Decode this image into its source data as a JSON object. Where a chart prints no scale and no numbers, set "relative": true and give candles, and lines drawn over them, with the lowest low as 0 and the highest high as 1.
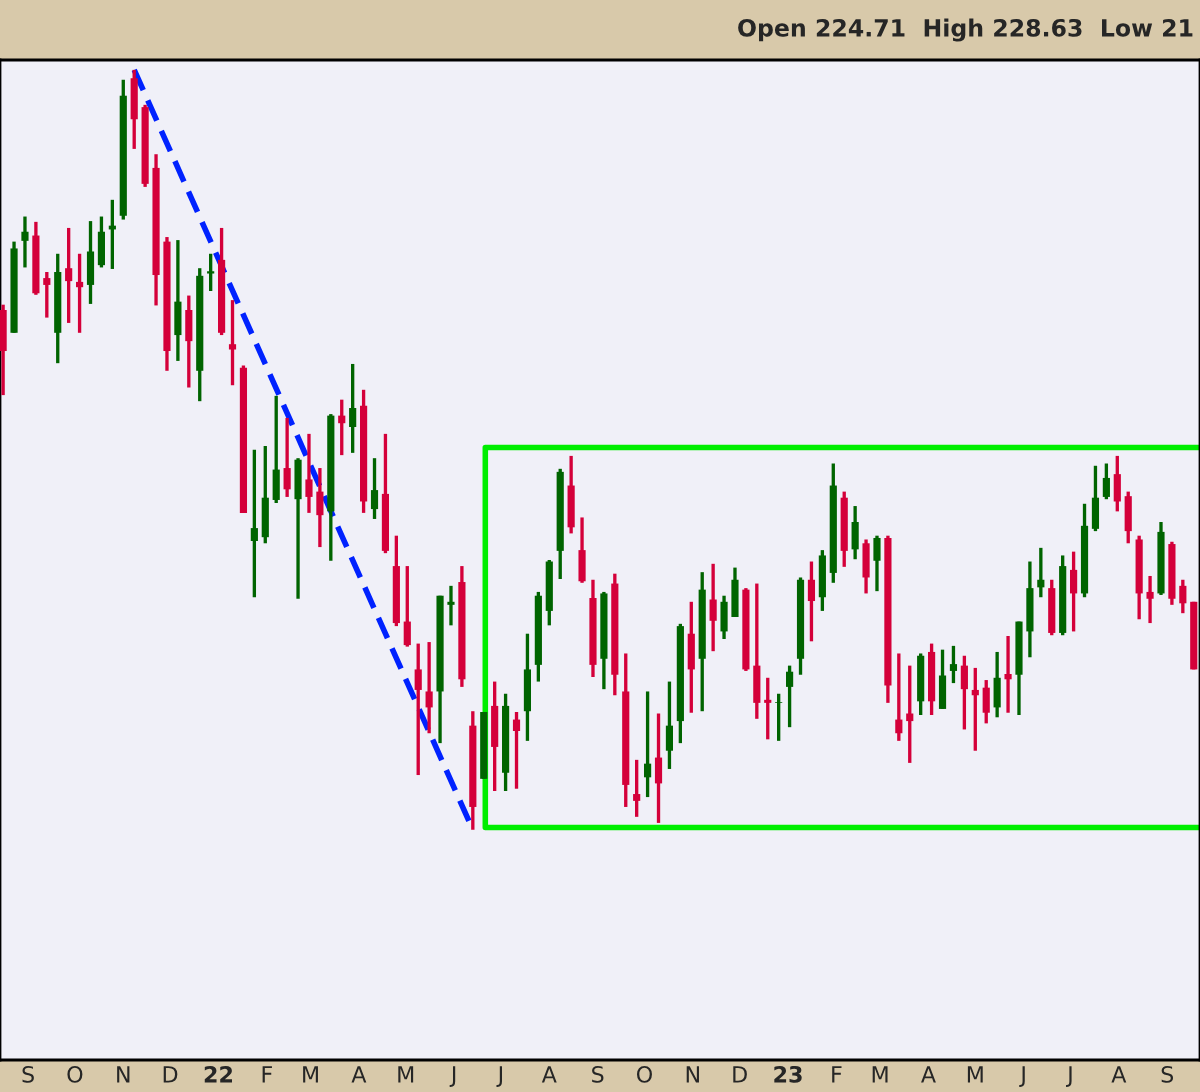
{
  "chart_data": {
    "type": "candlestick",
    "relative": true,
    "annotations": [
      "Open 224.71  High 228.63  Low 21"
    ],
    "x": [
      "2021-08-16",
      "2021-08-23",
      "2021-08-30",
      "2021-09-06",
      "2021-09-13",
      "2021-09-20",
      "2021-09-27",
      "2021-10-04",
      "2021-10-11",
      "2021-10-18",
      "2021-10-25",
      "2021-11-01",
      "2021-11-08",
      "2021-11-15",
      "2021-11-22",
      "2021-11-29",
      "2021-12-06",
      "2021-12-13",
      "2021-12-20",
      "2021-12-27",
      "2022-01-03",
      "2022-01-10",
      "2022-01-17",
      "2022-01-24",
      "2022-01-31",
      "2022-02-07",
      "2022-02-14",
      "2022-02-21",
      "2022-02-28",
      "2022-03-07",
      "2022-03-14",
      "2022-03-21",
      "2022-03-28",
      "2022-04-04",
      "2022-04-11",
      "2022-04-18",
      "2022-04-25",
      "2022-05-02",
      "2022-05-09",
      "2022-05-16",
      "2022-05-23",
      "2022-05-30",
      "2022-06-06",
      "2022-06-13",
      "2022-06-20",
      "2022-06-27",
      "2022-07-04",
      "2022-07-11",
      "2022-07-18",
      "2022-07-25",
      "2022-08-01",
      "2022-08-08",
      "2022-08-15",
      "2022-08-22",
      "2022-08-29",
      "2022-09-05",
      "2022-09-12",
      "2022-09-19",
      "2022-09-26",
      "2022-10-03",
      "2022-10-10",
      "2022-10-17",
      "2022-10-24",
      "2022-10-31",
      "2022-11-07",
      "2022-11-14",
      "2022-11-21",
      "2022-11-28",
      "2022-12-05",
      "2022-12-12",
      "2022-12-19",
      "2022-12-26",
      "2023-01-02",
      "2023-01-09",
      "2023-01-16",
      "2023-01-23",
      "2023-01-30",
      "2023-02-06",
      "2023-02-13",
      "2023-02-20",
      "2023-02-27",
      "2023-03-06",
      "2023-03-13",
      "2023-03-20",
      "2023-03-27",
      "2023-04-03",
      "2023-04-10",
      "2023-04-17",
      "2023-04-24",
      "2023-05-01",
      "2023-05-08",
      "2023-05-15",
      "2023-05-22",
      "2023-05-29",
      "2023-06-05",
      "2023-06-12",
      "2023-06-19",
      "2023-06-26",
      "2023-07-03",
      "2023-07-10",
      "2023-07-17",
      "2023-07-24",
      "2023-07-31",
      "2023-08-07",
      "2023-08-14",
      "2023-08-21",
      "2023-08-28",
      "2023-09-04",
      "2023-09-11",
      "2023-09-18"
    ],
    "ohlc": [
      [
        0.684,
        0.691,
        0.572,
        0.63
      ],
      [
        0.654,
        0.774,
        0.654,
        0.765
      ],
      [
        0.775,
        0.807,
        0.74,
        0.787
      ],
      [
        0.782,
        0.8,
        0.704,
        0.706
      ],
      [
        0.726,
        0.734,
        0.674,
        0.717
      ],
      [
        0.654,
        0.758,
        0.614,
        0.734
      ],
      [
        0.739,
        0.792,
        0.667,
        0.722
      ],
      [
        0.721,
        0.758,
        0.654,
        0.714
      ],
      [
        0.717,
        0.801,
        0.692,
        0.761
      ],
      [
        0.743,
        0.807,
        0.74,
        0.787
      ],
      [
        0.79,
        0.829,
        0.738,
        0.795
      ],
      [
        0.808,
        0.987,
        0.803,
        0.966
      ],
      [
        0.989,
        1.0,
        0.896,
        0.935
      ],
      [
        0.951,
        0.954,
        0.846,
        0.85
      ],
      [
        0.871,
        0.889,
        0.69,
        0.73
      ],
      [
        0.774,
        0.78,
        0.604,
        0.63
      ],
      [
        0.651,
        0.776,
        0.617,
        0.695
      ],
      [
        0.684,
        0.703,
        0.582,
        0.643
      ],
      [
        0.604,
        0.739,
        0.564,
        0.729
      ],
      [
        0.732,
        0.758,
        0.709,
        0.735
      ],
      [
        0.75,
        0.792,
        0.651,
        0.654
      ],
      [
        0.639,
        0.697,
        0.585,
        0.632
      ],
      [
        0.608,
        0.611,
        0.417,
        0.417
      ],
      [
        0.38,
        0.5,
        0.306,
        0.397
      ],
      [
        0.385,
        0.505,
        0.377,
        0.437
      ],
      [
        0.434,
        0.571,
        0.43,
        0.474
      ],
      [
        0.476,
        0.542,
        0.438,
        0.448
      ],
      [
        0.435,
        0.489,
        0.304,
        0.487
      ],
      [
        0.461,
        0.521,
        0.417,
        0.438
      ],
      [
        0.445,
        0.476,
        0.372,
        0.414
      ],
      [
        0.419,
        0.547,
        0.354,
        0.545
      ],
      [
        0.545,
        0.566,
        0.493,
        0.535
      ],
      [
        0.53,
        0.613,
        0.496,
        0.555
      ],
      [
        0.558,
        0.579,
        0.417,
        0.432
      ],
      [
        0.422,
        0.489,
        0.409,
        0.447
      ],
      [
        0.442,
        0.521,
        0.364,
        0.367
      ],
      [
        0.347,
        0.387,
        0.268,
        0.272
      ],
      [
        0.274,
        0.347,
        0.241,
        0.243
      ],
      [
        0.211,
        0.245,
        0.072,
        0.184
      ],
      [
        0.182,
        0.247,
        0.127,
        0.161
      ],
      [
        0.182,
        0.308,
        0.114,
        0.308
      ],
      [
        0.296,
        0.321,
        0.269,
        0.3
      ],
      [
        0.326,
        0.347,
        0.188,
        0.198
      ],
      [
        0.137,
        0.156,
        0.0,
        0.03
      ],
      [
        0.067,
        0.155,
        0.067,
        0.155
      ],
      [
        0.163,
        0.195,
        0.051,
        0.109
      ],
      [
        0.075,
        0.179,
        0.051,
        0.163
      ],
      [
        0.145,
        0.155,
        0.054,
        0.13
      ],
      [
        0.156,
        0.258,
        0.117,
        0.211
      ],
      [
        0.217,
        0.313,
        0.195,
        0.308
      ],
      [
        0.288,
        0.355,
        0.269,
        0.353
      ],
      [
        0.367,
        0.475,
        0.33,
        0.471
      ],
      [
        0.453,
        0.492,
        0.39,
        0.398
      ],
      [
        0.368,
        0.411,
        0.325,
        0.327
      ],
      [
        0.305,
        0.329,
        0.201,
        0.217
      ],
      [
        0.225,
        0.313,
        0.185,
        0.311
      ],
      [
        0.324,
        0.337,
        0.177,
        0.204
      ],
      [
        0.182,
        0.232,
        0.03,
        0.059
      ],
      [
        0.047,
        0.092,
        0.017,
        0.038
      ],
      [
        0.069,
        0.182,
        0.043,
        0.087
      ],
      [
        0.095,
        0.153,
        0.009,
        0.061
      ],
      [
        0.104,
        0.195,
        0.08,
        0.137
      ],
      [
        0.143,
        0.271,
        0.114,
        0.268
      ],
      [
        0.258,
        0.3,
        0.154,
        0.211
      ],
      [
        0.225,
        0.339,
        0.156,
        0.316
      ],
      [
        0.303,
        0.35,
        0.235,
        0.275
      ],
      [
        0.261,
        0.308,
        0.251,
        0.3
      ],
      [
        0.28,
        0.345,
        0.28,
        0.329
      ],
      [
        0.316,
        0.318,
        0.209,
        0.211
      ],
      [
        0.216,
        0.324,
        0.146,
        0.167
      ],
      [
        0.171,
        0.2,
        0.119,
        0.167
      ],
      [
        0.167,
        0.179,
        0.117,
        0.168
      ],
      [
        0.188,
        0.216,
        0.135,
        0.208
      ],
      [
        0.225,
        0.332,
        0.204,
        0.329
      ],
      [
        0.329,
        0.353,
        0.248,
        0.301
      ],
      [
        0.306,
        0.368,
        0.288,
        0.361
      ],
      [
        0.338,
        0.482,
        0.325,
        0.453
      ],
      [
        0.437,
        0.445,
        0.346,
        0.367
      ],
      [
        0.369,
        0.426,
        0.356,
        0.405
      ],
      [
        0.377,
        0.382,
        0.311,
        0.332
      ],
      [
        0.354,
        0.387,
        0.314,
        0.384
      ],
      [
        0.384,
        0.387,
        0.167,
        0.19
      ],
      [
        0.145,
        0.232,
        0.117,
        0.127
      ],
      [
        0.153,
        0.216,
        0.088,
        0.143
      ],
      [
        0.169,
        0.232,
        0.151,
        0.229
      ],
      [
        0.234,
        0.245,
        0.151,
        0.169
      ],
      [
        0.159,
        0.237,
        0.159,
        0.203
      ],
      [
        0.209,
        0.242,
        0.193,
        0.218
      ],
      [
        0.216,
        0.229,
        0.132,
        0.185
      ],
      [
        0.184,
        0.213,
        0.104,
        0.177
      ],
      [
        0.187,
        0.197,
        0.14,
        0.154
      ],
      [
        0.161,
        0.234,
        0.148,
        0.2
      ],
      [
        0.205,
        0.255,
        0.154,
        0.198
      ],
      [
        0.204,
        0.274,
        0.151,
        0.274
      ],
      [
        0.261,
        0.353,
        0.227,
        0.318
      ],
      [
        0.319,
        0.371,
        0.306,
        0.329
      ],
      [
        0.318,
        0.329,
        0.256,
        0.259
      ],
      [
        0.259,
        0.361,
        0.256,
        0.347
      ],
      [
        0.342,
        0.366,
        0.261,
        0.311
      ],
      [
        0.311,
        0.429,
        0.306,
        0.4
      ],
      [
        0.396,
        0.479,
        0.393,
        0.437
      ],
      [
        0.438,
        0.482,
        0.435,
        0.463
      ],
      [
        0.468,
        0.492,
        0.419,
        0.432
      ],
      [
        0.439,
        0.445,
        0.377,
        0.393
      ],
      [
        0.382,
        0.387,
        0.277,
        0.311
      ],
      [
        0.313,
        0.334,
        0.272,
        0.304
      ],
      [
        0.311,
        0.405,
        0.309,
        0.392
      ],
      [
        0.376,
        0.379,
        0.296,
        0.304
      ],
      [
        0.321,
        0.329,
        0.285,
        0.298
      ],
      [
        0.3,
        0.3,
        0.211,
        0.211
      ]
    ],
    "colors": [
      "#d4003a",
      "#006400",
      "#006400",
      "#d4003a",
      "#d4003a",
      "#006400",
      "#d4003a",
      "#d4003a",
      "#006400",
      "#006400",
      "#006400",
      "#006400",
      "#d4003a",
      "#d4003a",
      "#d4003a",
      "#d4003a",
      "#006400",
      "#d4003a",
      "#006400",
      "#006400",
      "#d4003a",
      "#d4003a",
      "#d4003a",
      "#006400",
      "#006400",
      "#006400",
      "#d4003a",
      "#006400",
      "#d4003a",
      "#d4003a",
      "#006400",
      "#d4003a",
      "#006400",
      "#d4003a",
      "#006400",
      "#d4003a",
      "#d4003a",
      "#d4003a",
      "#d4003a",
      "#d4003a",
      "#006400",
      "#006400",
      "#d4003a",
      "#d4003a",
      "#006400",
      "#d4003a",
      "#006400",
      "#d4003a",
      "#006400",
      "#006400",
      "#006400",
      "#006400",
      "#d4003a",
      "#d4003a",
      "#d4003a",
      "#006400",
      "#d4003a",
      "#d4003a",
      "#d4003a",
      "#006400",
      "#d4003a",
      "#006400",
      "#006400",
      "#d4003a",
      "#006400",
      "#d4003a",
      "#006400",
      "#006400",
      "#d4003a",
      "#d4003a",
      "#d4003a",
      "#006400",
      "#006400",
      "#006400",
      "#d4003a",
      "#006400",
      "#006400",
      "#d4003a",
      "#006400",
      "#d4003a",
      "#006400",
      "#d4003a",
      "#d4003a",
      "#d4003a",
      "#006400",
      "#d4003a",
      "#006400",
      "#006400",
      "#d4003a",
      "#d4003a",
      "#d4003a",
      "#006400",
      "#d4003a",
      "#006400",
      "#006400",
      "#006400",
      "#d4003a",
      "#006400",
      "#d4003a",
      "#006400",
      "#006400",
      "#006400",
      "#d4003a",
      "#d4003a",
      "#d4003a",
      "#d4003a",
      "#006400",
      "#d4003a",
      "#d4003a",
      "#d4003a"
    ],
    "series": [
      {
        "type": "line",
        "x": [
          "2021-11-08",
          "2022-06-13"
        ],
        "values": [
          1.0,
          0.0
        ],
        "color": "#0022ff",
        "line_style": "dashed"
      },
      {
        "type": "line",
        "x": [
          "2023-09-22",
          "2022-06-21",
          "2022-06-21",
          "2023-09-22"
        ],
        "values": [
          0.503,
          0.503,
          0.003,
          0.003
        ],
        "color": "#00ee00",
        "line_style": "solid"
      }
    ],
    "xlim": [
      "2021-08-14",
      "2023-09-22"
    ],
    "xticks": [
      {
        "value": "2021-09-01",
        "label": "S"
      },
      {
        "value": "2021-10-01",
        "label": "O"
      },
      {
        "value": "2021-11-01",
        "label": "N"
      },
      {
        "value": "2021-12-01",
        "label": "D"
      },
      {
        "value": "2022-01-01",
        "label": "22"
      },
      {
        "value": "2022-02-01",
        "label": "F"
      },
      {
        "value": "2022-03-01",
        "label": "M"
      },
      {
        "value": "2022-04-01",
        "label": "A"
      },
      {
        "value": "2022-05-01",
        "label": "M"
      },
      {
        "value": "2022-06-01",
        "label": "J"
      },
      {
        "value": "2022-07-01",
        "label": "J"
      },
      {
        "value": "2022-08-01",
        "label": "A"
      },
      {
        "value": "2022-09-01",
        "label": "S"
      },
      {
        "value": "2022-10-01",
        "label": "O"
      },
      {
        "value": "2022-11-01",
        "label": "N"
      },
      {
        "value": "2022-12-01",
        "label": "D"
      },
      {
        "value": "2023-01-01",
        "label": "23"
      },
      {
        "value": "2023-02-01",
        "label": "F"
      },
      {
        "value": "2023-03-01",
        "label": "M"
      },
      {
        "value": "2023-04-01",
        "label": "A"
      },
      {
        "value": "2023-05-01",
        "label": "M"
      },
      {
        "value": "2023-06-01",
        "label": "J"
      },
      {
        "value": "2023-07-01",
        "label": "J"
      },
      {
        "value": "2023-08-01",
        "label": "A"
      },
      {
        "value": "2023-09-01",
        "label": "S"
      }
    ]
  }
}
